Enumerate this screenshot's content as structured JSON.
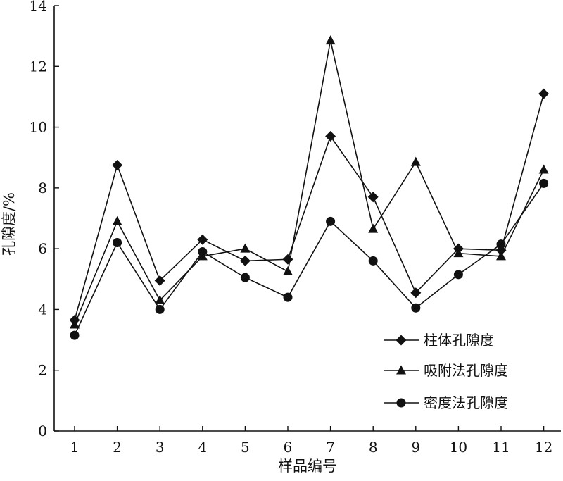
{
  "chart_data": {
    "type": "line",
    "xlabel": "样品编号",
    "ylabel": "孔隙度/%",
    "categories": [
      "1",
      "2",
      "3",
      "4",
      "5",
      "6",
      "7",
      "8",
      "9",
      "10",
      "11",
      "12"
    ],
    "ylim": [
      0,
      14
    ],
    "yticks": [
      "0",
      "2",
      "4",
      "6",
      "8",
      "10",
      "12",
      "14"
    ],
    "grid": false,
    "legend_position": "bottom-right",
    "series": [
      {
        "name": "柱体孔隙度",
        "marker": "diamond",
        "values": [
          3.65,
          8.75,
          4.95,
          6.3,
          5.6,
          5.65,
          9.7,
          7.7,
          4.55,
          6.0,
          5.95,
          11.1
        ]
      },
      {
        "name": "吸附法孔隙度",
        "marker": "triangle",
        "values": [
          3.5,
          6.9,
          4.3,
          5.75,
          6.0,
          5.25,
          12.85,
          6.65,
          8.85,
          5.85,
          5.75,
          8.6
        ]
      },
      {
        "name": "密度法孔隙度",
        "marker": "circle",
        "values": [
          3.15,
          6.2,
          4.0,
          5.9,
          5.05,
          4.4,
          6.9,
          5.6,
          4.05,
          5.15,
          6.15,
          8.15
        ]
      }
    ],
    "colors": {
      "line": "#111111",
      "marker": "#111111"
    }
  }
}
